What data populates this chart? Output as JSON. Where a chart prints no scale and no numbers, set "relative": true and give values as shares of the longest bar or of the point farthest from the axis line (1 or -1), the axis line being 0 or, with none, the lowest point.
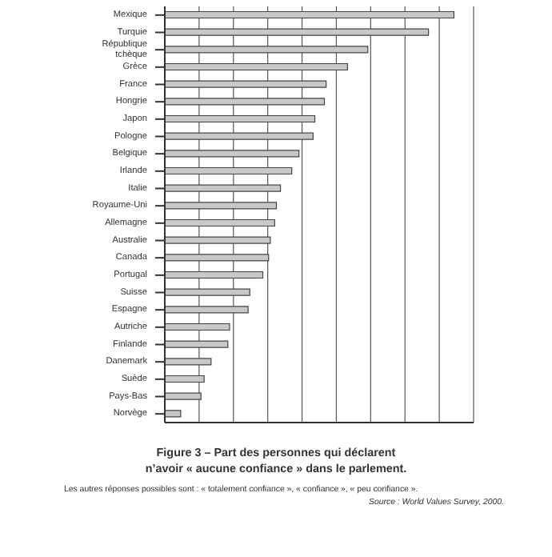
{
  "chart_data": {
    "type": "bar",
    "orientation": "horizontal",
    "relative": true,
    "title": "Figure 3 – Part des personnes qui déclarent n’avoir « aucune confiance » dans le parlement.",
    "categories": [
      "Mexique",
      "Turquie",
      "République tchèque",
      "Grèce",
      "France",
      "Hongrie",
      "Japon",
      "Pologne",
      "Belgique",
      "Irlande",
      "Italie",
      "Royaume-Uni",
      "Allemagne",
      "Australie",
      "Canada",
      "Portugal",
      "Suisse",
      "Espagne",
      "Autriche",
      "Finlande",
      "Danemark",
      "Suède",
      "Pays-Bas",
      "Norvège"
    ],
    "values": [
      1,
      0.912,
      0.702,
      0.632,
      0.558,
      0.552,
      0.519,
      0.513,
      0.464,
      0.439,
      0.4,
      0.386,
      0.38,
      0.365,
      0.359,
      0.339,
      0.294,
      0.288,
      0.224,
      0.218,
      0.16,
      0.136,
      0.125,
      0.055
    ],
    "color": "#c8c8c8",
    "grid": "x",
    "annotations": [
      "Les autres réponses possibles sont : « totalement confiance », « confiance », « peu confiance ».",
      "Source : World Values Survey, 2000."
    ]
  }
}
